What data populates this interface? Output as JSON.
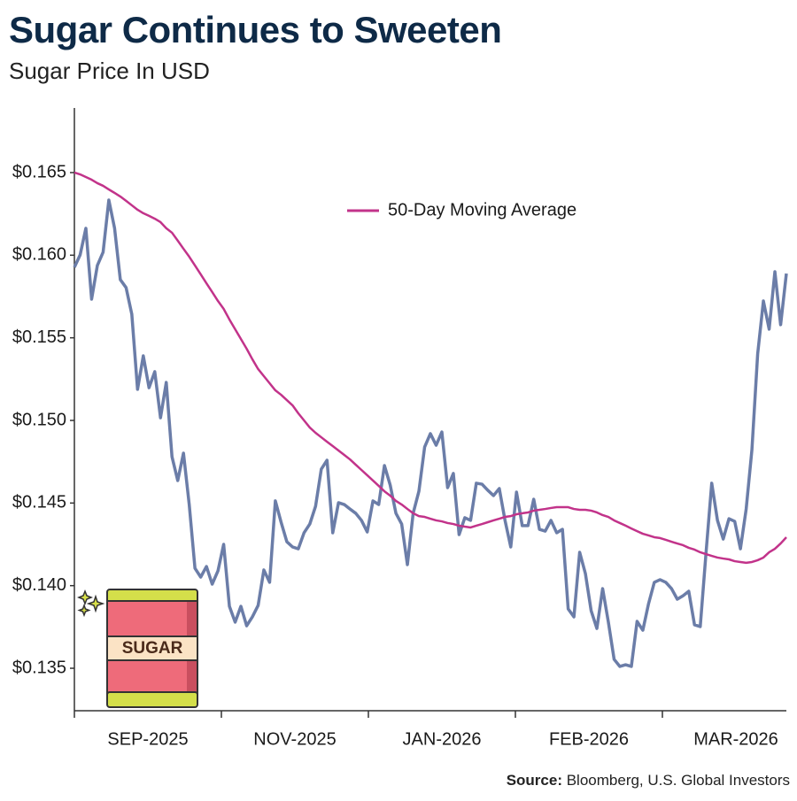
{
  "chart_data": {
    "type": "line",
    "title": "Sugar Continues to Sweeten",
    "subtitle": "Sugar Price In USD",
    "source_label": "Source:",
    "source": "Bloomberg, U.S. Global Investors",
    "icon_label": "SUGAR",
    "x_labels": [
      "SEP-2025",
      "NOV-2025",
      "JAN-2026",
      "FEB-2026",
      "MAR-2026"
    ],
    "ylim": [
      0.13243,
      0.16891
    ],
    "yticks": [
      {
        "value": 0.135,
        "label": "$0.135"
      },
      {
        "value": 0.14,
        "label": "$0.140"
      },
      {
        "value": 0.145,
        "label": "$0.145"
      },
      {
        "value": 0.15,
        "label": "$0.150"
      },
      {
        "value": 0.155,
        "label": "$0.155"
      },
      {
        "value": 0.16,
        "label": "$0.160"
      },
      {
        "value": 0.165,
        "label": "$0.165"
      }
    ],
    "legend_position": "top",
    "series": [
      {
        "color": "#6b7da8",
        "values": [
          0.15927,
          0.16002,
          0.16163,
          0.15734,
          0.15938,
          0.16018,
          0.16334,
          0.16163,
          0.15852,
          0.15804,
          0.15643,
          0.15188,
          0.15391,
          0.15198,
          0.15295,
          0.15016,
          0.1523,
          0.1478,
          0.14636,
          0.14802,
          0.14491,
          0.14105,
          0.14052,
          0.14116,
          0.14009,
          0.14089,
          0.1425,
          0.13875,
          0.13779,
          0.13875,
          0.13757,
          0.13811,
          0.1388,
          0.14095,
          0.1402,
          0.14513,
          0.14384,
          0.14266,
          0.14234,
          0.14223,
          0.1432,
          0.14373,
          0.1448,
          0.14705,
          0.14759,
          0.1432,
          0.14502,
          0.14491,
          0.14464,
          0.14438,
          0.14395,
          0.14325,
          0.14513,
          0.14491,
          0.14727,
          0.14609,
          0.14438,
          0.14373,
          0.14127,
          0.14438,
          0.14571,
          0.14839,
          0.1492,
          0.1485,
          0.1493,
          0.14593,
          0.14679,
          0.14309,
          0.14411,
          0.14395,
          0.1462,
          0.14614,
          0.14577,
          0.14545,
          0.14588,
          0.14395,
          0.14234,
          0.14566,
          0.14363,
          0.14363,
          0.14523,
          0.14341,
          0.1433,
          0.14395,
          0.1432,
          0.14341,
          0.13859,
          0.13811,
          0.14202,
          0.14073,
          0.13848,
          0.13741,
          0.13982,
          0.13779,
          0.13554,
          0.13511,
          0.13521,
          0.13511,
          0.13784,
          0.1373,
          0.13891,
          0.1402,
          0.14036,
          0.1402,
          0.13982,
          0.13918,
          0.13939,
          0.13966,
          0.13763,
          0.13752,
          0.14196,
          0.1462,
          0.14395,
          0.14282,
          0.14405,
          0.14389,
          0.14223,
          0.14464,
          0.14823,
          0.15402,
          0.15723,
          0.15552,
          0.159,
          0.15579,
          0.15889
        ]
      },
      {
        "name": "50-Day Moving Average",
        "color": "#c2338a",
        "values": [
          0.165,
          0.16489,
          0.16473,
          0.16457,
          0.16436,
          0.1642,
          0.16398,
          0.16377,
          0.16355,
          0.16329,
          0.16302,
          0.16275,
          0.16254,
          0.16238,
          0.16221,
          0.162,
          0.16163,
          0.16136,
          0.16088,
          0.16039,
          0.15991,
          0.15938,
          0.15884,
          0.1583,
          0.15777,
          0.15723,
          0.15675,
          0.15611,
          0.15552,
          0.15493,
          0.15434,
          0.1537,
          0.15311,
          0.15268,
          0.15225,
          0.15182,
          0.15155,
          0.15123,
          0.15091,
          0.15043,
          0.15,
          0.14957,
          0.14925,
          0.14898,
          0.14871,
          0.14845,
          0.14818,
          0.14791,
          0.14764,
          0.14732,
          0.147,
          0.14668,
          0.14636,
          0.14604,
          0.14571,
          0.14545,
          0.14513,
          0.14491,
          0.14464,
          0.14438,
          0.14421,
          0.14416,
          0.14405,
          0.14395,
          0.14389,
          0.14379,
          0.14373,
          0.14363,
          0.14357,
          0.14352,
          0.14363,
          0.14373,
          0.14384,
          0.14395,
          0.14405,
          0.14416,
          0.14421,
          0.14432,
          0.14438,
          0.14443,
          0.14454,
          0.14459,
          0.14464,
          0.1447,
          0.14475,
          0.14475,
          0.14475,
          0.14464,
          0.14459,
          0.14459,
          0.14454,
          0.14443,
          0.14427,
          0.14416,
          0.14395,
          0.14379,
          0.14363,
          0.14346,
          0.1433,
          0.14314,
          0.14304,
          0.14293,
          0.14288,
          0.14277,
          0.14266,
          0.14255,
          0.14245,
          0.14229,
          0.14218,
          0.14202,
          0.14191,
          0.1418,
          0.1417,
          0.14164,
          0.14159,
          0.14148,
          0.14143,
          0.14138,
          0.14143,
          0.14154,
          0.1417,
          0.14202,
          0.14223,
          0.14255,
          0.14293
        ]
      }
    ]
  }
}
